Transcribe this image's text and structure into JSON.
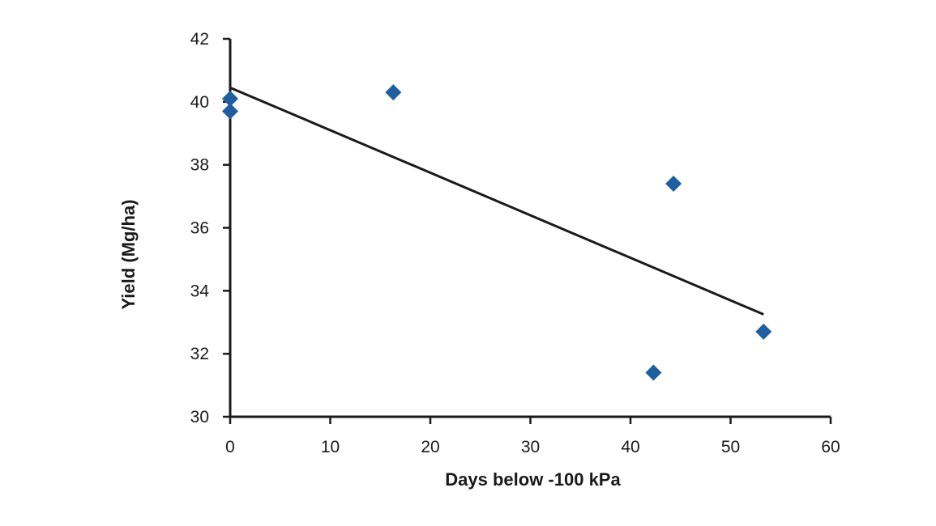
{
  "chart_data": {
    "type": "scatter",
    "xlabel": "Days below -100 kPa",
    "ylabel": "Yield (Mg/ha)",
    "xlim": [
      0,
      60
    ],
    "ylim": [
      30,
      42
    ],
    "x_ticks": [
      0,
      10,
      20,
      30,
      40,
      50,
      60
    ],
    "y_ticks": [
      30,
      32,
      34,
      36,
      38,
      40,
      42
    ],
    "grid": false,
    "series": [
      {
        "marker": "diamond",
        "color": "#1f5fa0",
        "points": [
          {
            "x": 0,
            "y": 40.1
          },
          {
            "x": 0,
            "y": 39.7
          },
          {
            "x": 16.3,
            "y": 40.3
          },
          {
            "x": 44.3,
            "y": 37.4
          },
          {
            "x": 42.3,
            "y": 31.4
          },
          {
            "x": 53.3,
            "y": 32.7
          }
        ]
      }
    ],
    "trendline": {
      "color": "#1a1a1a",
      "points": [
        {
          "x": 0,
          "y": 40.45
        },
        {
          "x": 53.3,
          "y": 33.25
        }
      ]
    }
  }
}
